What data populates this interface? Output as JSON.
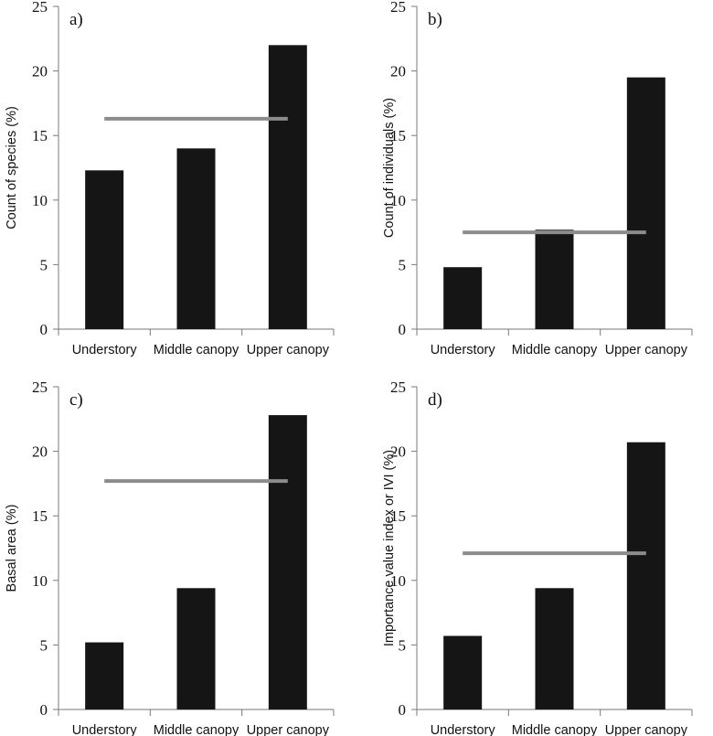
{
  "chart_data": [
    {
      "type": "bar",
      "panel_label": "a)",
      "categories": [
        "Understory",
        "Middle canopy",
        "Upper canopy"
      ],
      "values": [
        12.3,
        14.0,
        22.0
      ],
      "reference_line": 16.3,
      "ylabel": "Count of species (%)",
      "xlabel": "",
      "ylim": [
        0,
        25
      ],
      "yticks": [
        0,
        5,
        10,
        15,
        20,
        25
      ],
      "bar_color": "#151515",
      "line_color": "#8c8c8c"
    },
    {
      "type": "bar",
      "panel_label": "b)",
      "categories": [
        "Understory",
        "Middle canopy",
        "Upper canopy"
      ],
      "values": [
        4.8,
        7.7,
        19.5
      ],
      "reference_line": 7.5,
      "ylabel": "Count of individuals (%)",
      "xlabel": "",
      "ylim": [
        0,
        25
      ],
      "yticks": [
        0,
        5,
        10,
        15,
        20,
        25
      ],
      "bar_color": "#151515",
      "line_color": "#8c8c8c"
    },
    {
      "type": "bar",
      "panel_label": "c)",
      "categories": [
        "Understory",
        "Middle canopy",
        "Upper canopy"
      ],
      "values": [
        5.2,
        9.4,
        22.8
      ],
      "reference_line": 17.7,
      "ylabel": "Basal area (%)",
      "xlabel": "",
      "ylim": [
        0,
        25
      ],
      "yticks": [
        0,
        5,
        10,
        15,
        20,
        25
      ],
      "bar_color": "#151515",
      "line_color": "#8c8c8c"
    },
    {
      "type": "bar",
      "panel_label": "d)",
      "categories": [
        "Understory",
        "Middle canopy",
        "Upper canopy"
      ],
      "values": [
        5.7,
        9.4,
        20.7
      ],
      "reference_line": 12.1,
      "ylabel": "Importance value index or IVI (%)",
      "xlabel": "",
      "ylim": [
        0,
        25
      ],
      "yticks": [
        0,
        5,
        10,
        15,
        20,
        25
      ],
      "bar_color": "#151515",
      "line_color": "#8c8c8c"
    }
  ]
}
